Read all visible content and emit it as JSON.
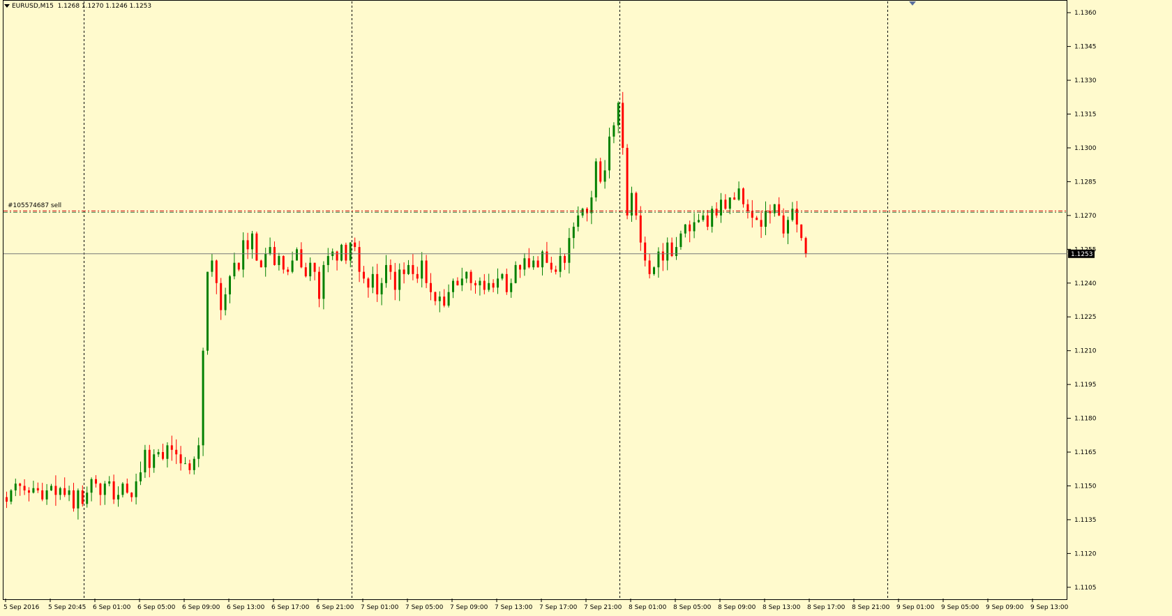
{
  "header": {
    "symbol": "EURUSD,M15",
    "ohlc": "1.1268 1.1270 1.1246 1.1253"
  },
  "order_label": "#105574687 sell",
  "current_price_label": "1.1253",
  "colors": {
    "background": "#fffacd",
    "bull": "#008000",
    "bear": "#ff0000",
    "order_line": "#d00000",
    "axis": "#000000"
  },
  "chart_data": {
    "type": "candlestick",
    "symbol": "EURUSD",
    "timeframe": "M15",
    "ylim": [
      1.11,
      1.1365
    ],
    "y_ticks": [
      "1.1360",
      "1.1345",
      "1.1330",
      "1.1315",
      "1.1300",
      "1.1285",
      "1.1270",
      "1.1255",
      "1.1240",
      "1.1225",
      "1.1210",
      "1.1195",
      "1.1180",
      "1.1165",
      "1.1150",
      "1.1135",
      "1.1120",
      "1.1105"
    ],
    "x_ticks": [
      "5 Sep 2016",
      "5 Sep 20:45",
      "6 Sep 01:00",
      "6 Sep 05:00",
      "6 Sep 09:00",
      "6 Sep 13:00",
      "6 Sep 17:00",
      "6 Sep 21:00",
      "7 Sep 01:00",
      "7 Sep 05:00",
      "7 Sep 09:00",
      "7 Sep 13:00",
      "7 Sep 17:00",
      "7 Sep 21:00",
      "8 Sep 01:00",
      "8 Sep 05:00",
      "8 Sep 09:00",
      "8 Sep 13:00",
      "8 Sep 17:00",
      "8 Sep 21:00",
      "9 Sep 01:00",
      "9 Sep 05:00",
      "9 Sep 09:00",
      "9 Sep 13:00"
    ],
    "day_separators": [
      "6 Sep 00:00",
      "7 Sep 00:00",
      "8 Sep 00:00",
      "9 Sep 00:00"
    ],
    "order_line": {
      "label": "#105574687 sell",
      "price": 1.1272
    },
    "bid_line": 1.1253,
    "close_path": [
      [
        1.1143,
        1.1148,
        1.1151,
        1.115,
        1.1148,
        1.1147,
        1.1149,
        1.1148,
        1.1144,
        1.1148
      ],
      [
        1.115,
        1.1146,
        1.1149,
        1.1146,
        1.1148,
        1.114,
        1.1148,
        1.1142,
        1.1147,
        1.1153
      ],
      [
        1.1151,
        1.1146,
        1.1151,
        1.1152,
        1.1144,
        1.1146,
        1.1151,
        1.1147,
        1.1145,
        1.1152
      ],
      [
        1.1156,
        1.1166,
        1.1158,
        1.1164,
        1.1165,
        1.1162,
        1.1168,
        1.1166,
        1.1164,
        1.116
      ],
      [
        1.116,
        1.1157,
        1.1162,
        1.1168,
        1.121,
        1.1245,
        1.125,
        1.124,
        1.1228,
        1.1235
      ],
      [
        1.1243,
        1.1249,
        1.1246,
        1.1259,
        1.1255,
        1.1262,
        1.125,
        1.1247,
        1.1253,
        1.1256
      ],
      [
        1.1248,
        1.1252,
        1.1246,
        1.1245,
        1.125,
        1.1255,
        1.1247,
        1.1243,
        1.1249,
        1.1245
      ],
      [
        1.1233,
        1.1248,
        1.1252,
        1.1254,
        1.125,
        1.1257,
        1.125,
        1.1258,
        1.1256,
        1.1245
      ],
      [
        1.1242,
        1.1238,
        1.1244,
        1.1235,
        1.124,
        1.1248,
        1.1245,
        1.1237,
        1.1246,
        1.1244
      ],
      [
        1.1248,
        1.1244,
        1.1242,
        1.125,
        1.124,
        1.1236,
        1.1232,
        1.1234,
        1.123,
        1.1236
      ],
      [
        1.1241,
        1.1239,
        1.1242,
        1.1245,
        1.124,
        1.1239,
        1.1241,
        1.1237,
        1.124,
        1.1238
      ],
      [
        1.1242,
        1.1244,
        1.1236,
        1.124,
        1.1248,
        1.1246,
        1.1251,
        1.1247,
        1.125,
        1.1247
      ],
      [
        1.1254,
        1.1249,
        1.1246,
        1.1245,
        1.1252,
        1.1249,
        1.126,
        1.1265,
        1.127,
        1.1273
      ],
      [
        1.1271,
        1.1278,
        1.1294,
        1.1285,
        1.129,
        1.1305,
        1.131,
        1.132,
        1.13,
        1.127
      ],
      [
        1.128,
        1.127,
        1.1258,
        1.125,
        1.1244,
        1.1247,
        1.1254,
        1.125,
        1.1258,
        1.1252
      ],
      [
        1.1256,
        1.1262,
        1.1266,
        1.1263,
        1.1267,
        1.1268,
        1.127,
        1.1265,
        1.1273,
        1.127
      ],
      [
        1.1277,
        1.1273,
        1.1278,
        1.1277,
        1.1282,
        1.1275,
        1.1272,
        1.1269,
        1.1268,
        1.1265
      ],
      [
        1.1272,
        1.1271,
        1.1275,
        1.127,
        1.1262,
        1.1268,
        1.1273,
        1.1266,
        1.126,
        1.1253
      ]
    ]
  }
}
